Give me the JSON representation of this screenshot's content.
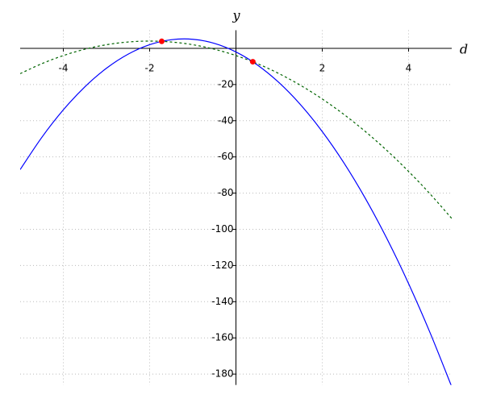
{
  "chart_data": {
    "type": "line",
    "x_label": "d",
    "y_label": "y",
    "xlim": [
      -5,
      5
    ],
    "ylim": [
      -186,
      10
    ],
    "xticks": [
      -4,
      -2,
      2,
      4
    ],
    "yticks": [
      -20,
      -40,
      -60,
      -80,
      -100,
      -120,
      -140,
      -160,
      -180
    ],
    "grid": true,
    "x": [
      -5,
      -4.5,
      -4,
      -3.5,
      -3,
      -2.5,
      -2,
      -1.5,
      -1,
      -0.5,
      0,
      0.5,
      1,
      1.5,
      2,
      2.5,
      3,
      3.5,
      4,
      4.5,
      5
    ],
    "series": [
      {
        "color": "#0000ff",
        "dash": false,
        "values": [
          -67,
          -49.25,
          -34,
          -21.25,
          -11,
          -3.25,
          2,
          4.75,
          5,
          2.75,
          -2,
          -9.25,
          -19,
          -31.25,
          -46,
          -63.25,
          -83,
          -105.25,
          -130,
          -157.25,
          -187
        ]
      },
      {
        "color": "#006400",
        "dash": true,
        "values": [
          -14,
          -8.5,
          -4,
          -0.5,
          2,
          3.5,
          4,
          3.5,
          2,
          -0.5,
          -4,
          -8.5,
          -14,
          -20.5,
          -28,
          -36.5,
          -46,
          -56.5,
          -68,
          -80.5,
          -94
        ]
      }
    ],
    "points": {
      "color": "#ff0000",
      "x": [
        -1.72,
        0.39
      ],
      "y": [
        3.85,
        -7.4
      ]
    }
  }
}
